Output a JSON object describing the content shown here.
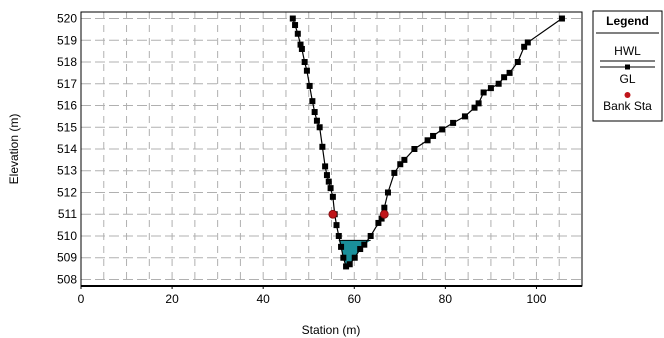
{
  "chart_data": {
    "type": "line",
    "xlabel": "Station (m)",
    "ylabel": "Elevation (m)",
    "xlim": [
      0,
      110
    ],
    "ylim": [
      507.7,
      520.3
    ],
    "x_ticks": [
      0,
      20,
      40,
      60,
      80,
      100
    ],
    "y_ticks": [
      508,
      509,
      510,
      511,
      512,
      513,
      514,
      515,
      516,
      517,
      518,
      519,
      520
    ],
    "grid": true,
    "legend_position": "right",
    "legend": {
      "title": "Legend",
      "entries": [
        "HWL",
        "GL",
        "Bank Sta"
      ]
    },
    "colors": {
      "water": "#1a8f9a",
      "ground_line": "#000000",
      "bank_station": "#c0151a",
      "grid": "#b0b0b0"
    },
    "series": [
      {
        "name": "GL",
        "x": [
          46.5,
          47.0,
          47.6,
          48.2,
          48.5,
          49.1,
          49.6,
          50.2,
          50.8,
          51.3,
          51.8,
          52.4,
          53.0,
          53.6,
          54.0,
          54.4,
          54.8,
          55.3,
          55.7,
          56.1,
          56.6,
          57.1,
          57.6,
          58.2,
          59.0,
          60.1,
          61.3,
          62.2,
          63.6,
          65.3,
          66.0,
          66.6,
          67.4,
          68.8,
          70.1,
          71.0,
          73.2,
          76.1,
          77.3,
          79.3,
          81.7,
          84.3,
          86.4,
          87.3,
          88.4,
          90.0,
          91.7,
          92.9,
          94.1,
          95.9,
          97.3,
          98.1,
          105.6
        ],
        "y": [
          520.0,
          519.7,
          519.3,
          518.8,
          518.6,
          518.0,
          517.6,
          516.9,
          516.2,
          515.7,
          515.3,
          515.0,
          514.1,
          513.2,
          512.8,
          512.5,
          512.2,
          511.8,
          511.0,
          510.5,
          510.0,
          509.5,
          509.0,
          508.6,
          508.7,
          509.0,
          509.4,
          509.6,
          510.0,
          510.6,
          510.8,
          511.3,
          512.0,
          512.9,
          513.3,
          513.5,
          514.0,
          514.4,
          514.6,
          514.9,
          515.2,
          515.5,
          515.9,
          516.1,
          516.6,
          516.8,
          517.0,
          517.3,
          517.5,
          518.0,
          518.7,
          518.9,
          520.0
        ]
      },
      {
        "name": "HWL",
        "x": [
          56.6,
          63.6
        ],
        "y": [
          509.8,
          509.8
        ]
      },
      {
        "name": "Bank Sta",
        "x": [
          55.3,
          66.6
        ],
        "y": [
          511.0,
          511.0
        ]
      }
    ]
  }
}
